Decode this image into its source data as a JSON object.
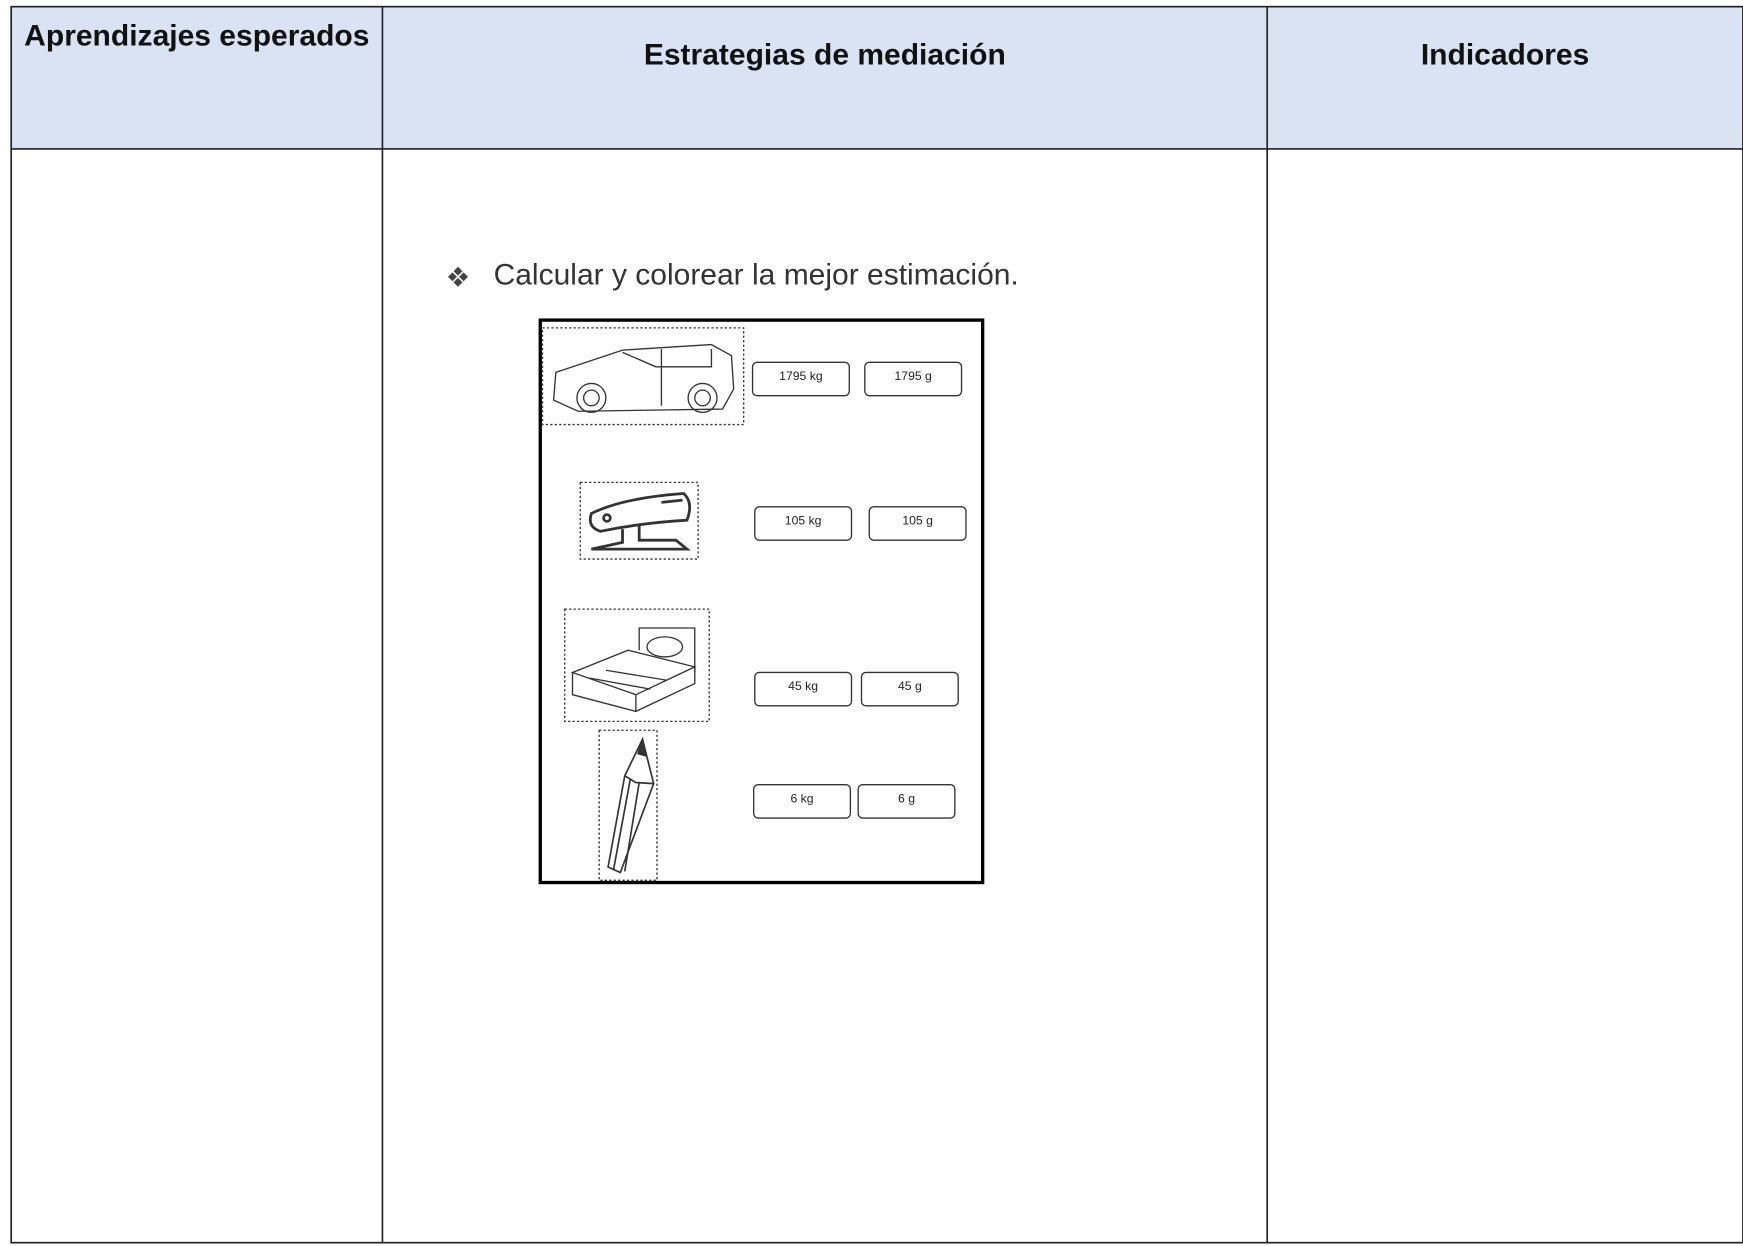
{
  "table": {
    "headers": [
      "Aprendizajes esperados",
      "Estrategias de mediación",
      "Indicadores"
    ],
    "worksheet": {
      "instruction": "Calcular y colorear la mejor estimación.",
      "items": [
        {
          "options": [
            "1795 kg",
            "1795 g"
          ]
        },
        {
          "options": [
            "105 kg",
            "105 g"
          ]
        },
        {
          "options": [
            "45 kg",
            "45 g"
          ]
        },
        {
          "options": [
            "6 kg",
            "6 g"
          ]
        }
      ]
    }
  }
}
